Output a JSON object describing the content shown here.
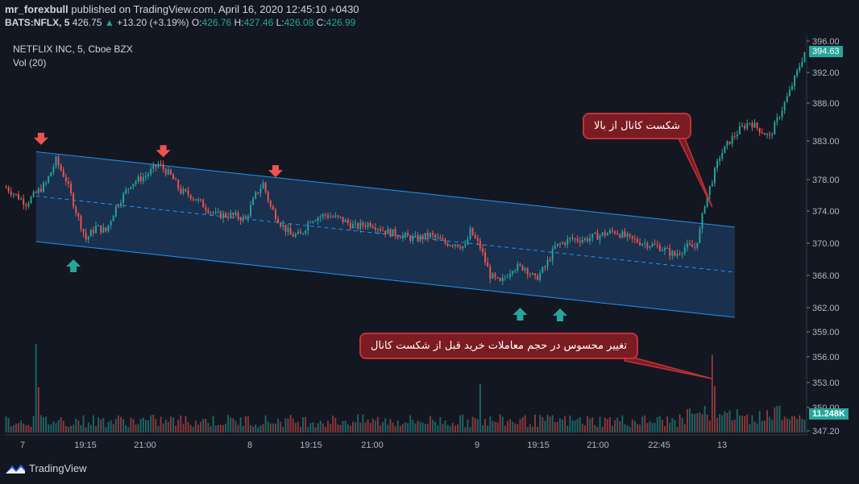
{
  "header": {
    "user": "mr_forexbull",
    "published": "published on TradingView.com, April 16, 2020 12:45:10 +0430",
    "symbol": "BATS:NFLX, 5",
    "price": "426.75",
    "change": "+13.20 (+3.19%)",
    "o_label": "O:",
    "o_value": "426.76",
    "h_label": "H:",
    "h_value": "427.46",
    "l_label": "L:",
    "l_value": "426.08",
    "c_label": "C:",
    "c_value": "426.99"
  },
  "legend": {
    "title": "NETFLIX INC, 5, Cboe BZX",
    "volume": "Vol (20)"
  },
  "price_badge": "394.63",
  "volume_badge": "11.248K",
  "annotations": {
    "breakout": "شکست کانال از بالا",
    "volume": "تغییر محسوس در حجم معاملات خرید قبل از شکست کانال"
  },
  "footer": {
    "brand": "TradingView"
  },
  "colors": {
    "background": "#131722",
    "up": "#26a69a",
    "down": "#ef5350",
    "channel_fill": "#1c3a5e",
    "channel_line": "#2196f3",
    "annotation_fill": "#7a1c22",
    "annotation_border": "#c2323c"
  },
  "chart_data": {
    "type": "candlestick",
    "price_axis_ticks": [
      396.0,
      392.0,
      388.0,
      383.0,
      378.0,
      374.0,
      370.0,
      366.0,
      362.0,
      359.0,
      356.0,
      353.0,
      350.0,
      347.2
    ],
    "price_axis_labels": [
      "396.00",
      "392.00",
      "388.00",
      "383.00",
      "378.00",
      "374.00",
      "370.00",
      "366.00",
      "362.00",
      "359.00",
      "356.00",
      "353.00",
      "350.00",
      "347.20"
    ],
    "time_axis_labels": [
      "7",
      "19:15",
      "21:00",
      "8",
      "19:15",
      "21:00",
      "9",
      "19:15",
      "21:00",
      "22:45",
      "13"
    ],
    "ylim": [
      347.2,
      396.0
    ],
    "grid": false,
    "price_path": [
      [
        0,
        377
      ],
      [
        8,
        375
      ],
      [
        16,
        377.5
      ],
      [
        20,
        380.5
      ],
      [
        24,
        378
      ],
      [
        28,
        374
      ],
      [
        32,
        370.5
      ],
      [
        36,
        372
      ],
      [
        40,
        371.5
      ],
      [
        44,
        374.5
      ],
      [
        50,
        377.5
      ],
      [
        56,
        378.5
      ],
      [
        61,
        380
      ],
      [
        66,
        378.5
      ],
      [
        70,
        376.5
      ],
      [
        74,
        376
      ],
      [
        78,
        375
      ],
      [
        84,
        373.5
      ],
      [
        90,
        373.5
      ],
      [
        96,
        373
      ],
      [
        100,
        376
      ],
      [
        103,
        377.5
      ],
      [
        106,
        374.5
      ],
      [
        110,
        372.5
      ],
      [
        114,
        371
      ],
      [
        118,
        371
      ],
      [
        122,
        373
      ],
      [
        128,
        373.5
      ],
      [
        134,
        373
      ],
      [
        140,
        372
      ],
      [
        146,
        372.5
      ],
      [
        152,
        371.5
      ],
      [
        158,
        371
      ],
      [
        164,
        370.5
      ],
      [
        170,
        371
      ],
      [
        176,
        370
      ],
      [
        180,
        370
      ],
      [
        184,
        369.5
      ],
      [
        186,
        371.5
      ],
      [
        190,
        369.5
      ],
      [
        194,
        366
      ],
      [
        198,
        365
      ],
      [
        203,
        367
      ],
      [
        208,
        367
      ],
      [
        212,
        365.5
      ],
      [
        216,
        367
      ],
      [
        220,
        369.5
      ],
      [
        226,
        370.5
      ],
      [
        232,
        370.5
      ],
      [
        238,
        371
      ],
      [
        244,
        371.5
      ],
      [
        250,
        370.5
      ],
      [
        256,
        370
      ],
      [
        262,
        369.5
      ],
      [
        268,
        368.5
      ],
      [
        272,
        369.5
      ],
      [
        276,
        369.5
      ],
      [
        278,
        371.5
      ],
      [
        280,
        375
      ],
      [
        282,
        377
      ],
      [
        284,
        379
      ],
      [
        286,
        381
      ],
      [
        290,
        383
      ],
      [
        294,
        384.5
      ],
      [
        298,
        385.5
      ],
      [
        302,
        384.5
      ],
      [
        306,
        383.5
      ],
      [
        310,
        386.5
      ],
      [
        314,
        389.5
      ],
      [
        317,
        392
      ],
      [
        320,
        394.6
      ]
    ],
    "candle_count": 321,
    "channel": {
      "upper": [
        [
          12,
          381.6
        ],
        [
          292,
          372.0
        ]
      ],
      "lower": [
        [
          12,
          370.2
        ],
        [
          292,
          360.8
        ]
      ],
      "mid": [
        [
          12,
          375.9
        ],
        [
          292,
          366.4
        ]
      ]
    },
    "markers": {
      "down_arrows": [
        [
          14,
          382.6
        ],
        [
          63,
          381.0
        ],
        [
          108,
          378.4
        ]
      ],
      "up_arrows": [
        [
          27,
          368.0
        ],
        [
          206,
          362.0
        ],
        [
          222,
          361.9
        ]
      ]
    },
    "volume": {
      "axis_labels": [
        "359.00",
        "356.00",
        "353.00",
        "350.00",
        "347.20"
      ],
      "spikes": [
        [
          12,
          0.88
        ],
        [
          13,
          0.45
        ],
        [
          190,
          0.48
        ],
        [
          283,
          0.77
        ],
        [
          284,
          0.46
        ]
      ],
      "max_label": "11.248K"
    }
  }
}
